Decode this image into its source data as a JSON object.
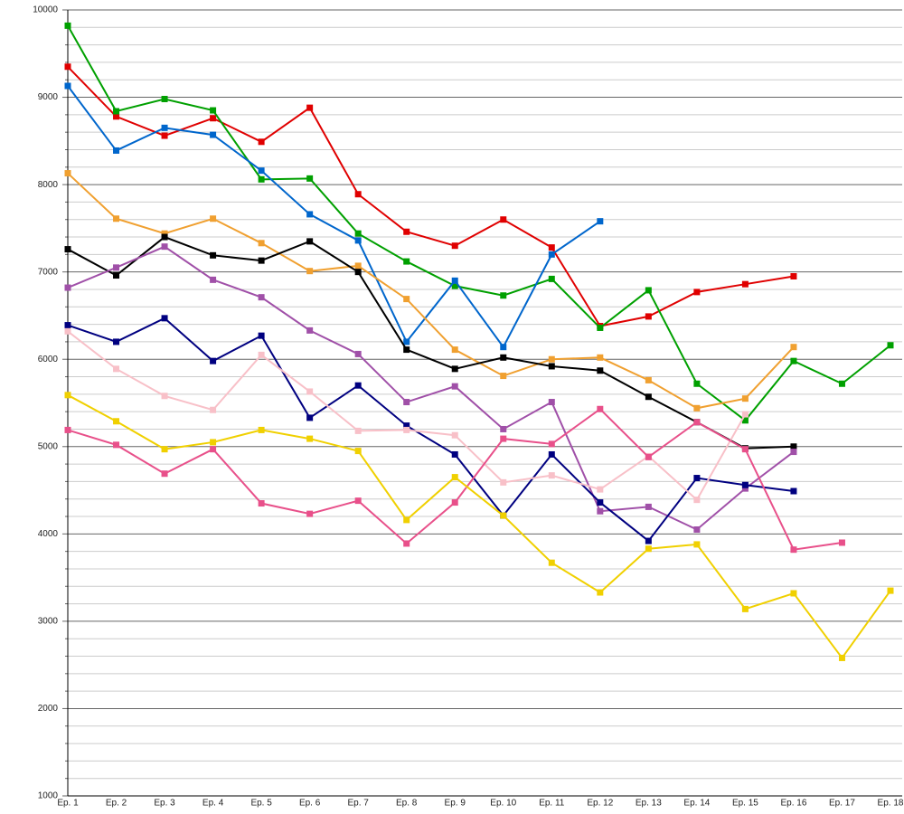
{
  "chart_data": {
    "type": "line",
    "categories": [
      "Ep. 1",
      "Ep. 2",
      "Ep. 3",
      "Ep. 4",
      "Ep. 5",
      "Ep. 6",
      "Ep. 7",
      "Ep. 8",
      "Ep. 9",
      "Ep. 10",
      "Ep. 11",
      "Ep. 12",
      "Ep. 13",
      "Ep. 14",
      "Ep. 15",
      "Ep. 16",
      "Ep. 17",
      "Ep. 18"
    ],
    "ylim": [
      1000,
      10000
    ],
    "yticks": [
      1000,
      2000,
      3000,
      4000,
      5000,
      6000,
      7000,
      8000,
      9000,
      10000
    ],
    "grid": true,
    "series": [
      {
        "color": "#e00000",
        "values": [
          9350,
          8780,
          8560,
          8760,
          8490,
          8880,
          7890,
          7460,
          7300,
          7600,
          7280,
          6380,
          6490,
          6770,
          6860,
          6950,
          null,
          null
        ]
      },
      {
        "color": "#00a000",
        "values": [
          9820,
          8840,
          8980,
          8850,
          8060,
          8070,
          7440,
          7120,
          6840,
          6730,
          6920,
          6360,
          6790,
          5720,
          5300,
          5980,
          5720,
          6160
        ]
      },
      {
        "color": "#0066cc",
        "values": [
          9130,
          8390,
          8650,
          8570,
          8160,
          7660,
          7360,
          6200,
          6900,
          6140,
          7200,
          7580,
          null,
          null,
          null,
          null,
          null,
          null
        ]
      },
      {
        "color": "#f0a030",
        "values": [
          8130,
          7610,
          7440,
          7610,
          7330,
          7010,
          7070,
          6690,
          6110,
          5810,
          6000,
          6020,
          5760,
          5440,
          5550,
          6140,
          null,
          null
        ]
      },
      {
        "color": "#000000",
        "values": [
          7260,
          6960,
          7400,
          7190,
          7130,
          7350,
          7000,
          6110,
          5890,
          6020,
          5920,
          5870,
          5570,
          5280,
          4980,
          5000,
          null,
          null
        ]
      },
      {
        "color": "#a050a8",
        "values": [
          6820,
          7050,
          7290,
          6910,
          6710,
          6330,
          6060,
          5510,
          5690,
          5200,
          5510,
          4260,
          4310,
          4050,
          4520,
          4940,
          null,
          null
        ]
      },
      {
        "color": "#000080",
        "values": [
          6390,
          6200,
          6470,
          5980,
          6270,
          5330,
          5700,
          5240,
          4910,
          4210,
          4910,
          4360,
          3920,
          4640,
          4560,
          4490,
          null,
          null
        ]
      },
      {
        "color": "#f8c0c8",
        "values": [
          6320,
          5890,
          5580,
          5420,
          6050,
          5630,
          5180,
          5190,
          5130,
          4590,
          4670,
          4510,
          4890,
          4390,
          5370,
          null,
          null,
          null
        ]
      },
      {
        "color": "#e8508a",
        "values": [
          5190,
          5020,
          4690,
          4970,
          4350,
          4230,
          4380,
          3890,
          4360,
          5090,
          5030,
          5430,
          4880,
          5280,
          4970,
          3820,
          3900,
          null
        ]
      },
      {
        "color": "#f0d000",
        "values": [
          5590,
          5290,
          4970,
          5050,
          5190,
          5090,
          4950,
          4160,
          4650,
          4210,
          3670,
          3330,
          3830,
          3880,
          3140,
          3320,
          2580,
          3350
        ]
      }
    ]
  }
}
